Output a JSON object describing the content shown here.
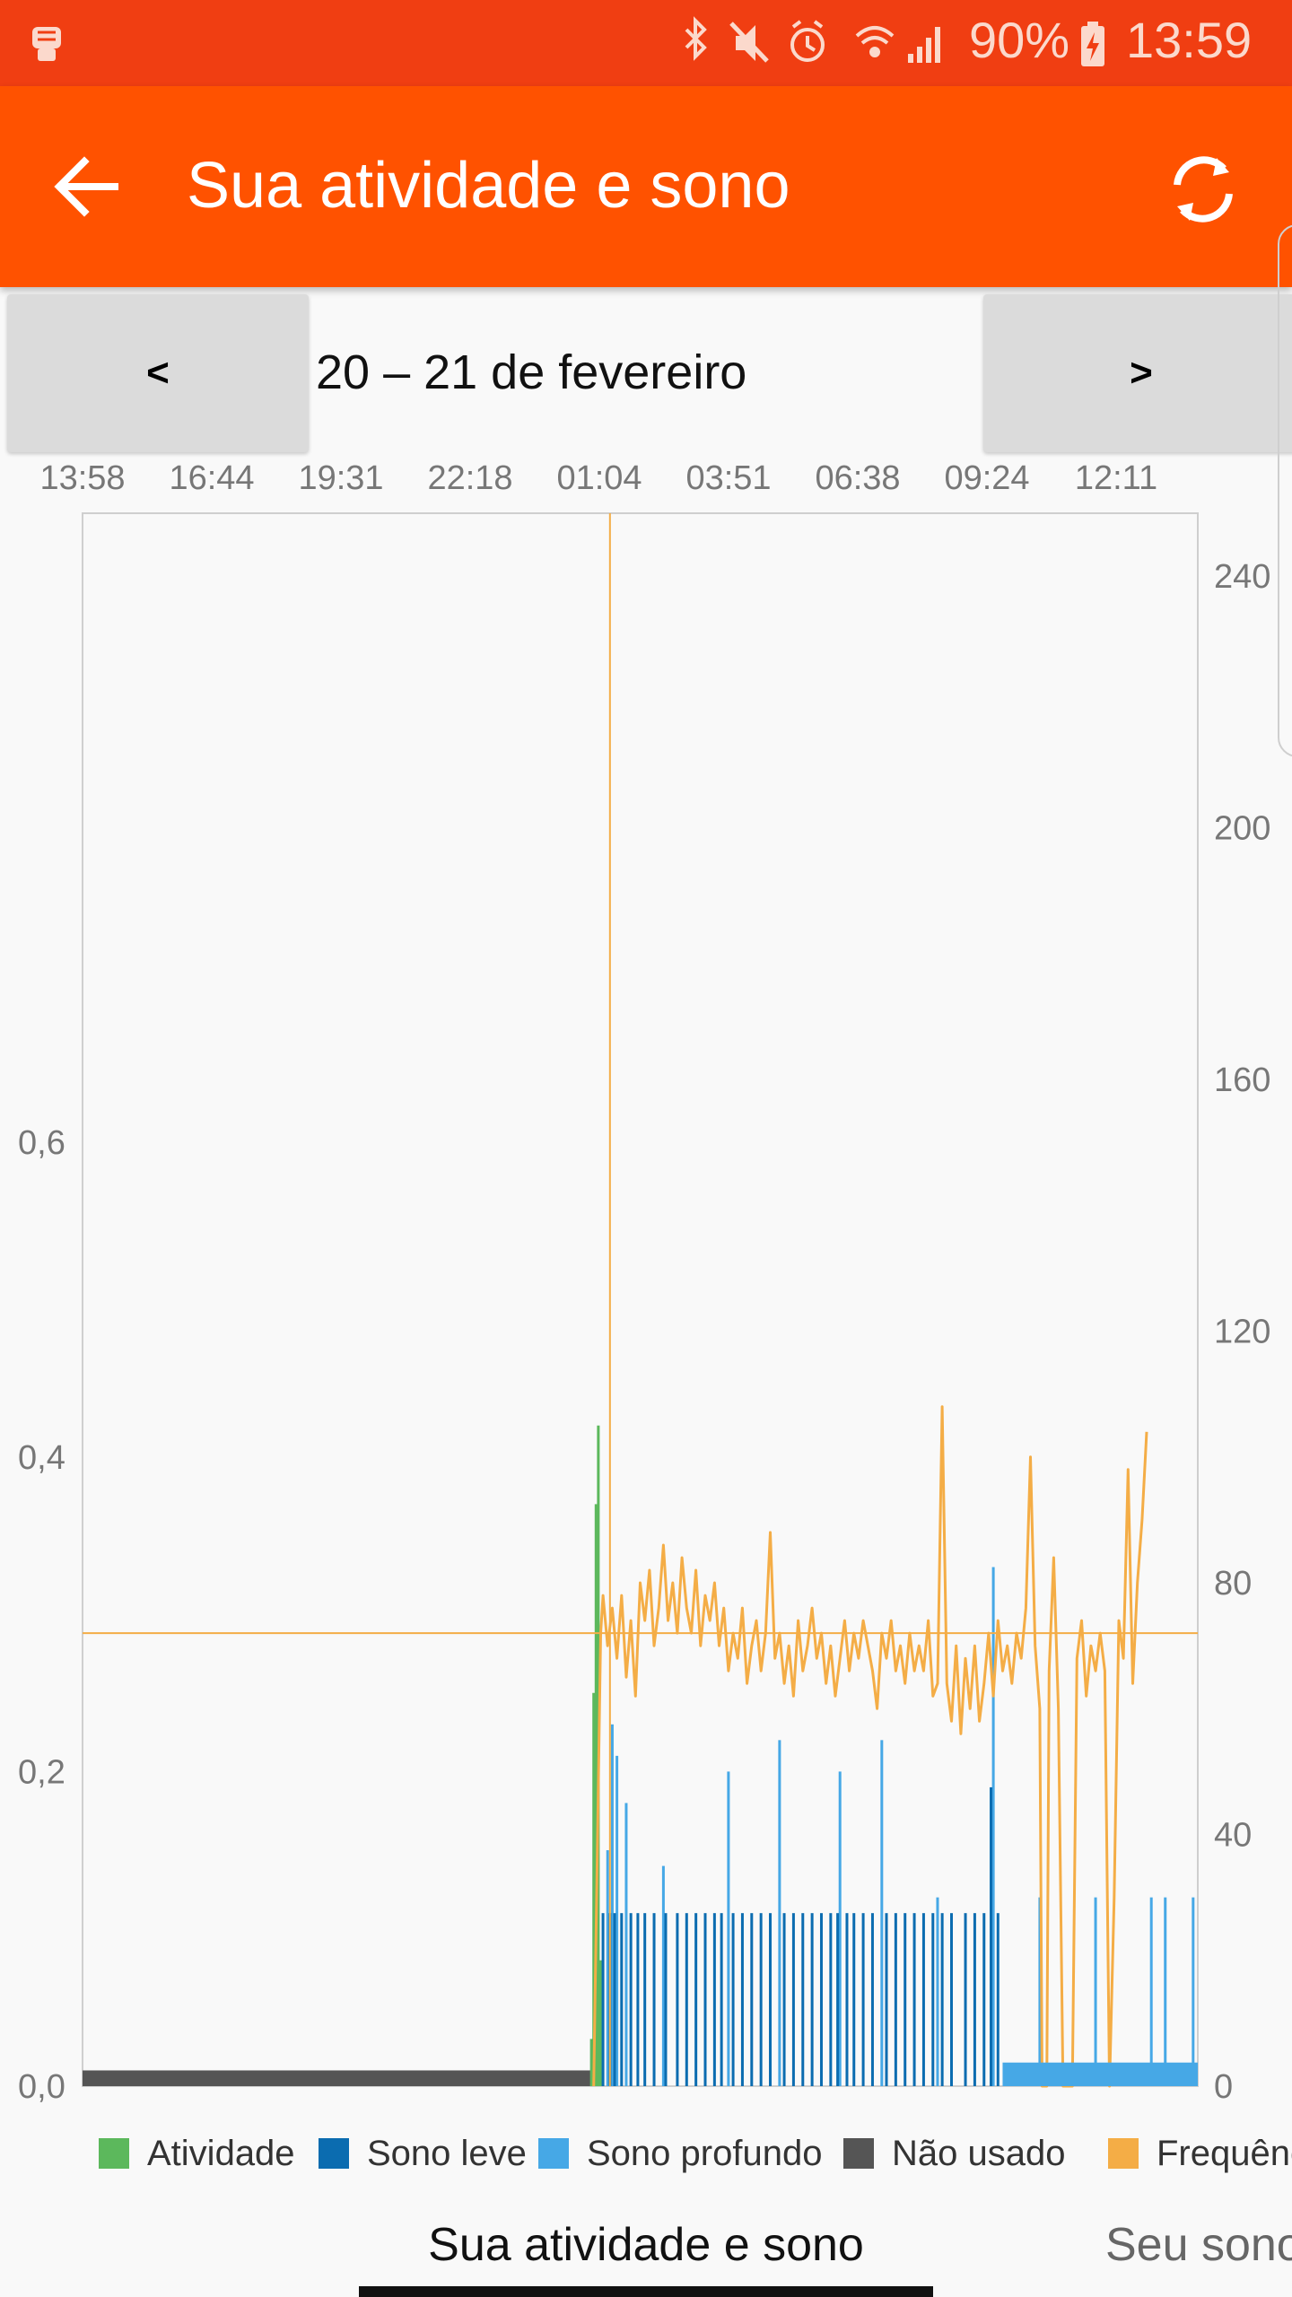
{
  "status_bar": {
    "battery": "90%",
    "time": "13:59",
    "icons": [
      "app-fist-icon",
      "bluetooth-icon",
      "mute-icon",
      "alarm-icon",
      "wifi-icon",
      "signal-icon",
      "battery-charging-icon"
    ]
  },
  "app_bar": {
    "title": "Sua atividade e sono",
    "icons": [
      "back-arrow-icon",
      "refresh-icon"
    ]
  },
  "date_nav": {
    "prev_label": "<",
    "next_label": ">",
    "date_range": "20 – 21 de fevereiro"
  },
  "tabs": {
    "active": "Sua atividade e sono",
    "next": "Seu sono"
  },
  "colors": {
    "status_bar": "#f03e12",
    "app_bar": "#ff5200",
    "activity": "#5cb85c",
    "light_sleep": "#0b6cb0",
    "deep_sleep": "#46a8e6",
    "not_worn": "#555555",
    "heart_rate": "#f4ad46"
  },
  "chart_data": {
    "type": "bar",
    "x_tick_labels": [
      "13:58",
      "16:44",
      "19:31",
      "22:18",
      "01:04",
      "03:51",
      "06:38",
      "09:24",
      "12:11"
    ],
    "y_left_ticks": [
      "0,0",
      "0,2",
      "0,4",
      "0,6"
    ],
    "y_left_values": [
      0,
      0.2,
      0.4,
      0.6
    ],
    "y_left_range": [
      0,
      1.0
    ],
    "y_right_ticks": [
      "0",
      "40",
      "80",
      "120",
      "160",
      "200",
      "240"
    ],
    "y_right_values": [
      0,
      40,
      80,
      120,
      160,
      200,
      240
    ],
    "y_right_range": [
      0,
      250
    ],
    "x_range_hours": [
      0,
      24
    ],
    "legend": [
      "Atividade",
      "Sono leve",
      "Sono profundo",
      "Não usado",
      "Frequência cardíaca"
    ],
    "legend_visible_text": [
      "Atividade",
      "Sono leve",
      "Sono profundo",
      "Não usado",
      "Frequência"
    ],
    "reference_line": {
      "heart_rate": 72,
      "time_hours": 11.35
    },
    "series": [
      {
        "name": "Não usado",
        "kind": "band",
        "start_hours": 0.0,
        "end_hours": 11.0,
        "value": 0.01
      },
      {
        "name": "Atividade",
        "kind": "bars",
        "points": [
          [
            10.95,
            0.03
          ],
          [
            11.0,
            0.25
          ],
          [
            11.05,
            0.37
          ],
          [
            11.1,
            0.42
          ],
          [
            11.15,
            0.08
          ]
        ]
      },
      {
        "name": "Sono profundo",
        "kind": "bars",
        "points": [
          [
            11.3,
            0.15
          ],
          [
            11.4,
            0.23
          ],
          [
            11.5,
            0.21
          ],
          [
            11.7,
            0.18
          ],
          [
            12.5,
            0.14
          ],
          [
            13.9,
            0.2
          ],
          [
            15.0,
            0.22
          ],
          [
            16.3,
            0.2
          ],
          [
            17.2,
            0.22
          ],
          [
            18.4,
            0.12
          ],
          [
            19.6,
            0.33
          ],
          [
            20.6,
            0.12
          ],
          [
            21.8,
            0.12
          ],
          [
            23.0,
            0.12
          ],
          [
            23.3,
            0.12
          ],
          [
            23.9,
            0.12
          ],
          [
            20.6,
            0.01
          ],
          [
            21.0,
            0.01
          ],
          [
            22.0,
            0.01
          ],
          [
            23.5,
            0.01
          ]
        ]
      },
      {
        "name": "Sono leve",
        "kind": "bars",
        "points": [
          [
            11.2,
            0.11
          ],
          [
            11.35,
            0.11
          ],
          [
            11.45,
            0.11
          ],
          [
            11.6,
            0.11
          ],
          [
            11.8,
            0.11
          ],
          [
            11.95,
            0.11
          ],
          [
            12.1,
            0.11
          ],
          [
            12.3,
            0.11
          ],
          [
            12.55,
            0.11
          ],
          [
            12.8,
            0.11
          ],
          [
            13.0,
            0.11
          ],
          [
            13.2,
            0.11
          ],
          [
            13.4,
            0.11
          ],
          [
            13.6,
            0.11
          ],
          [
            13.75,
            0.11
          ],
          [
            14.0,
            0.11
          ],
          [
            14.2,
            0.11
          ],
          [
            14.4,
            0.11
          ],
          [
            14.6,
            0.11
          ],
          [
            14.8,
            0.11
          ],
          [
            15.1,
            0.11
          ],
          [
            15.3,
            0.11
          ],
          [
            15.5,
            0.11
          ],
          [
            15.7,
            0.11
          ],
          [
            15.9,
            0.11
          ],
          [
            16.1,
            0.11
          ],
          [
            16.25,
            0.11
          ],
          [
            16.45,
            0.11
          ],
          [
            16.6,
            0.11
          ],
          [
            16.8,
            0.11
          ],
          [
            17.0,
            0.11
          ],
          [
            17.3,
            0.11
          ],
          [
            17.5,
            0.11
          ],
          [
            17.7,
            0.11
          ],
          [
            17.9,
            0.11
          ],
          [
            18.1,
            0.11
          ],
          [
            18.3,
            0.11
          ],
          [
            18.5,
            0.11
          ],
          [
            18.7,
            0.11
          ],
          [
            19.0,
            0.11
          ],
          [
            19.2,
            0.11
          ],
          [
            19.4,
            0.11
          ],
          [
            19.55,
            0.19
          ],
          [
            19.7,
            0.11
          ]
        ]
      },
      {
        "name": "Frequência cardíaca",
        "kind": "line",
        "points": [
          [
            11.0,
            0
          ],
          [
            11.15,
            72
          ],
          [
            11.2,
            78
          ],
          [
            11.3,
            70
          ],
          [
            11.4,
            76
          ],
          [
            11.5,
            68
          ],
          [
            11.6,
            78
          ],
          [
            11.7,
            65
          ],
          [
            11.8,
            74
          ],
          [
            11.9,
            62
          ],
          [
            12.0,
            80
          ],
          [
            12.1,
            74
          ],
          [
            12.2,
            82
          ],
          [
            12.3,
            70
          ],
          [
            12.4,
            76
          ],
          [
            12.5,
            86
          ],
          [
            12.6,
            74
          ],
          [
            12.7,
            80
          ],
          [
            12.8,
            72
          ],
          [
            12.9,
            84
          ],
          [
            13.0,
            76
          ],
          [
            13.1,
            72
          ],
          [
            13.2,
            82
          ],
          [
            13.3,
            70
          ],
          [
            13.4,
            78
          ],
          [
            13.5,
            74
          ],
          [
            13.6,
            80
          ],
          [
            13.7,
            70
          ],
          [
            13.8,
            76
          ],
          [
            13.9,
            66
          ],
          [
            14.0,
            72
          ],
          [
            14.1,
            68
          ],
          [
            14.2,
            76
          ],
          [
            14.3,
            64
          ],
          [
            14.4,
            70
          ],
          [
            14.5,
            74
          ],
          [
            14.6,
            66
          ],
          [
            14.7,
            72
          ],
          [
            14.8,
            88
          ],
          [
            14.9,
            68
          ],
          [
            15.0,
            72
          ],
          [
            15.1,
            64
          ],
          [
            15.2,
            70
          ],
          [
            15.3,
            62
          ],
          [
            15.4,
            74
          ],
          [
            15.5,
            66
          ],
          [
            15.6,
            70
          ],
          [
            15.7,
            76
          ],
          [
            15.8,
            68
          ],
          [
            15.9,
            72
          ],
          [
            16.0,
            64
          ],
          [
            16.1,
            70
          ],
          [
            16.2,
            62
          ],
          [
            16.3,
            68
          ],
          [
            16.4,
            74
          ],
          [
            16.5,
            66
          ],
          [
            16.6,
            72
          ],
          [
            16.7,
            68
          ],
          [
            16.8,
            74
          ],
          [
            16.9,
            70
          ],
          [
            17.0,
            66
          ],
          [
            17.1,
            60
          ],
          [
            17.2,
            72
          ],
          [
            17.3,
            68
          ],
          [
            17.4,
            74
          ],
          [
            17.5,
            66
          ],
          [
            17.6,
            70
          ],
          [
            17.7,
            64
          ],
          [
            17.8,
            72
          ],
          [
            17.9,
            66
          ],
          [
            18.0,
            70
          ],
          [
            18.1,
            66
          ],
          [
            18.2,
            74
          ],
          [
            18.3,
            62
          ],
          [
            18.4,
            64
          ],
          [
            18.5,
            108
          ],
          [
            18.6,
            64
          ],
          [
            18.7,
            58
          ],
          [
            18.8,
            70
          ],
          [
            18.9,
            56
          ],
          [
            19.0,
            68
          ],
          [
            19.1,
            60
          ],
          [
            19.2,
            70
          ],
          [
            19.3,
            58
          ],
          [
            19.4,
            64
          ],
          [
            19.5,
            72
          ],
          [
            19.6,
            62
          ],
          [
            19.7,
            74
          ],
          [
            19.8,
            66
          ],
          [
            19.9,
            70
          ],
          [
            20.0,
            64
          ],
          [
            20.1,
            72
          ],
          [
            20.2,
            68
          ],
          [
            20.3,
            76
          ],
          [
            20.4,
            100
          ],
          [
            20.5,
            70
          ],
          [
            20.6,
            60
          ],
          [
            20.65,
            0
          ],
          [
            20.75,
            0
          ],
          [
            20.8,
            66
          ],
          [
            20.9,
            84
          ],
          [
            21.0,
            60
          ],
          [
            21.1,
            0
          ],
          [
            21.2,
            0
          ],
          [
            21.3,
            0
          ],
          [
            21.4,
            68
          ],
          [
            21.5,
            74
          ],
          [
            21.6,
            62
          ],
          [
            21.7,
            70
          ],
          [
            21.8,
            66
          ],
          [
            21.9,
            72
          ],
          [
            22.0,
            66
          ],
          [
            22.1,
            0
          ],
          [
            22.2,
            30
          ],
          [
            22.3,
            74
          ],
          [
            22.4,
            68
          ],
          [
            22.5,
            98
          ],
          [
            22.6,
            64
          ],
          [
            22.7,
            80
          ],
          [
            22.8,
            90
          ],
          [
            22.9,
            104
          ]
        ]
      }
    ]
  }
}
